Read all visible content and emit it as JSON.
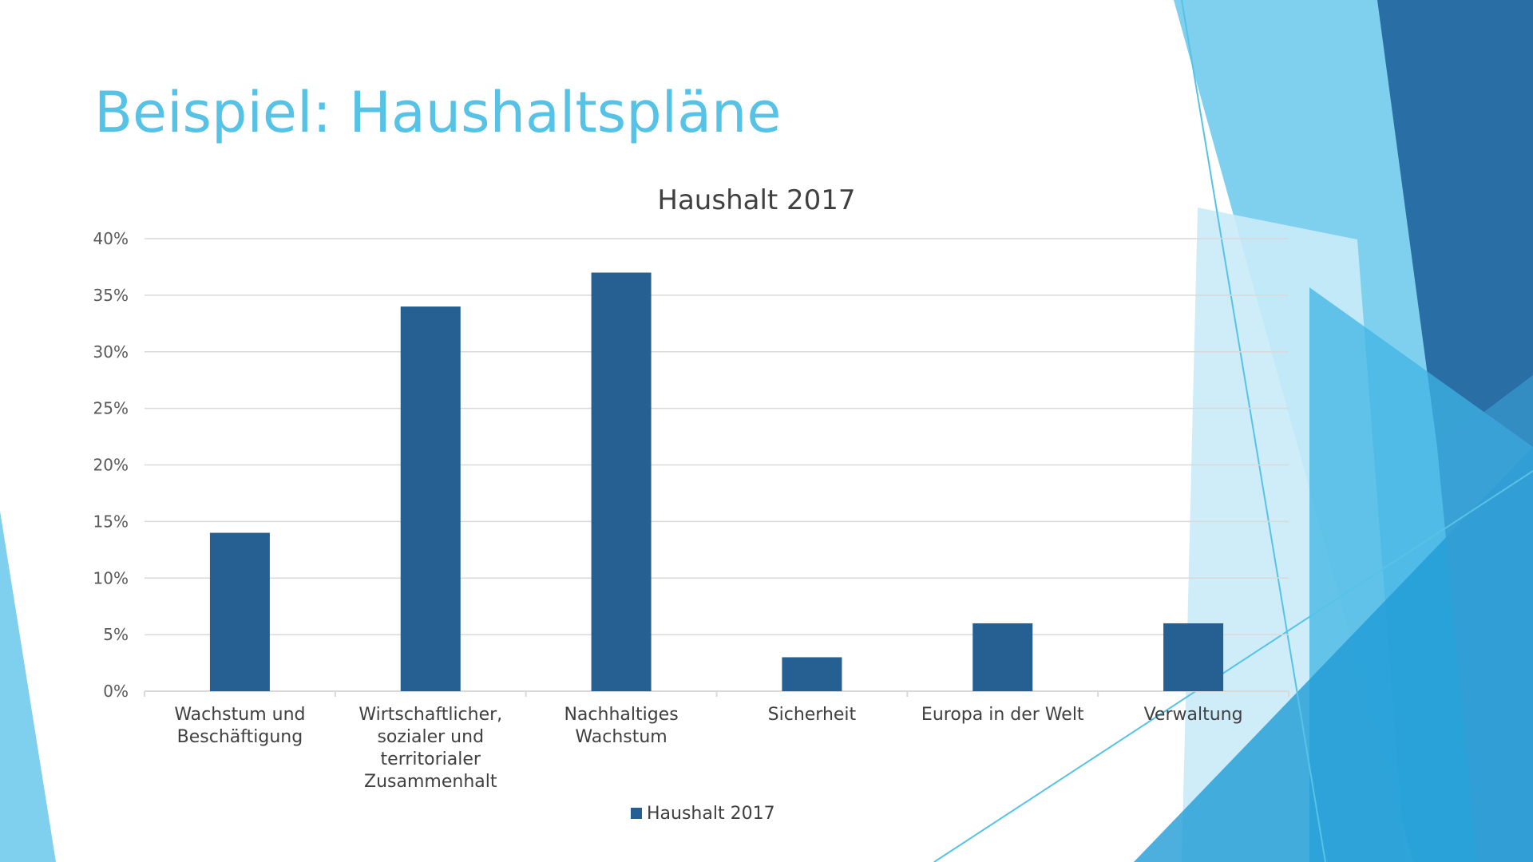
{
  "slide": {
    "title": "Beispiel: Haushaltspläne"
  },
  "colors": {
    "title": "#56c3e6",
    "bar": "#265f91",
    "grid": "#d9d9d9",
    "deco_light": "#7fd0ee",
    "deco_mid": "#3fb4e3",
    "deco_dark": "#2a6ea6",
    "deco_pale": "#c9ebf8"
  },
  "chart_data": {
    "type": "bar",
    "title": "Haushalt 2017",
    "categories": [
      [
        "Wachstum und",
        "Beschäftigung"
      ],
      [
        "Wirtschaftlicher,",
        "sozialer und",
        "territorialer",
        "Zusammenhalt"
      ],
      [
        "Nachhaltiges",
        "Wachstum"
      ],
      [
        "Sicherheit"
      ],
      [
        "Europa in der Welt"
      ],
      [
        "Verwaltung"
      ]
    ],
    "series": [
      {
        "name": "Haushalt 2017",
        "values": [
          14,
          34,
          37,
          3,
          6,
          6
        ]
      }
    ],
    "ylim": [
      0,
      40
    ],
    "yticks": [
      0,
      5,
      10,
      15,
      20,
      25,
      30,
      35,
      40
    ],
    "ytick_labels": [
      "0%",
      "5%",
      "10%",
      "15%",
      "20%",
      "25%",
      "30%",
      "35%",
      "40%"
    ],
    "xlabel": "",
    "ylabel": "",
    "grid": true,
    "legend_position": "bottom"
  }
}
